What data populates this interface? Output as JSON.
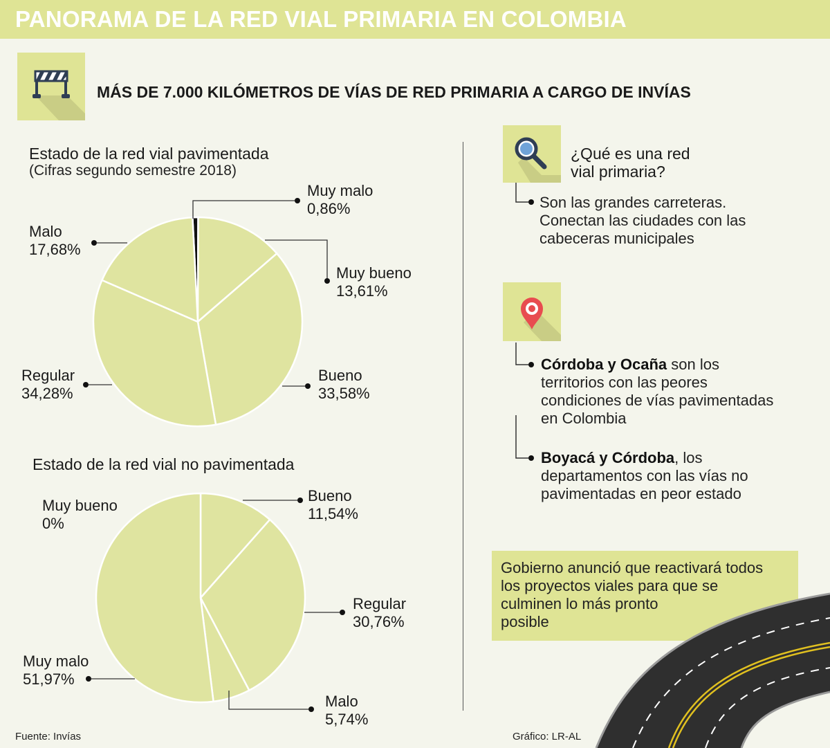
{
  "header": {
    "title": "PANORAMA DE LA RED VIAL PRIMARIA EN COLOMBIA",
    "subtitle": "MÁS DE 7.000 KILÓMETROS DE  VÍAS DE RED PRIMARIA A CARGO DE INVÍAS",
    "subtitle_icon": "road-barrier-icon"
  },
  "colors": {
    "accent": "#dfe495",
    "pie_fill": "#dfe4a0",
    "background": "#f4f5ec",
    "highlight_slice": "#111111"
  },
  "chart_data": [
    {
      "type": "pie",
      "title": "Estado de la red vial pavimentada",
      "subtitle": "(Cifras segundo semestre 2018)",
      "slices": [
        {
          "name": "Muy malo",
          "value": 0.86,
          "label": "0,86%"
        },
        {
          "name": "Muy bueno",
          "value": 13.61,
          "label": "13,61%"
        },
        {
          "name": "Bueno",
          "value": 33.58,
          "label": "33,58%"
        },
        {
          "name": "Regular",
          "value": 34.28,
          "label": "34,28%"
        },
        {
          "name": "Malo",
          "value": 17.68,
          "label": "17,68%"
        }
      ]
    },
    {
      "type": "pie",
      "title": "Estado de la red vial no pavimentada",
      "slices": [
        {
          "name": "Bueno",
          "value": 11.54,
          "label": "11,54%"
        },
        {
          "name": "Regular",
          "value": 30.76,
          "label": "30,76%"
        },
        {
          "name": "Malo",
          "value": 5.74,
          "label": "5,74%"
        },
        {
          "name": "Muy malo",
          "value": 51.97,
          "label": "51,97%"
        },
        {
          "name": "Muy bueno",
          "value": 0,
          "label": "0%"
        }
      ]
    }
  ],
  "sidebar": {
    "question": {
      "icon": "magnifier-icon",
      "line1": "¿Qué es una red",
      "line2": "vial primaria?",
      "answer": [
        "Son las grandes carreteras.",
        "Conectan las ciudades con las",
        "cabeceras municipales"
      ]
    },
    "location": {
      "icon": "map-pin-icon",
      "item1": {
        "bold": "Córdoba y Ocaña",
        "rest_first": " son los",
        "rest": [
          "territorios con las peores",
          "condiciones de vías pavimentadas",
          "en Colombia"
        ]
      },
      "item2": {
        "bold": "Boyacá y Córdoba",
        "rest_first": ", los",
        "rest": [
          "departamentos con las vías no",
          "pavimentadas en peor estado"
        ]
      }
    },
    "note": [
      "Gobierno anunció que reactivará todos",
      "los proyectos viales para que se",
      "culminen lo más pronto",
      "posible"
    ],
    "road_image": "highway-road-illustration"
  },
  "footer": {
    "source": "Fuente: Invías",
    "credit": "Gráfico: LR-AL"
  }
}
